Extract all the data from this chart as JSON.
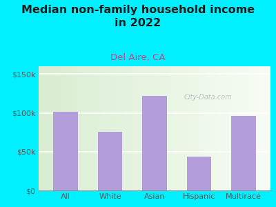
{
  "title": "Median non-family household income\nin 2022",
  "subtitle": "Del Aire, CA",
  "categories": [
    "All",
    "White",
    "Asian",
    "Hispanic",
    "Multirace"
  ],
  "values": [
    101000,
    76000,
    122000,
    44000,
    96000
  ],
  "bar_color": "#b39ddb",
  "title_fontsize": 11.5,
  "subtitle_fontsize": 9.5,
  "subtitle_color": "#cc4488",
  "title_color": "#1a1a1a",
  "tick_color": "#555555",
  "bg_outer": "#00f0ff",
  "ylim": [
    0,
    160000
  ],
  "yticks": [
    0,
    50000,
    100000,
    150000
  ],
  "ytick_labels": [
    "$0",
    "$50k",
    "$100k",
    "$150k"
  ],
  "watermark": "City-Data.com",
  "bg_grad_left": "#ddeedd",
  "bg_grad_right": "#f5faf0"
}
